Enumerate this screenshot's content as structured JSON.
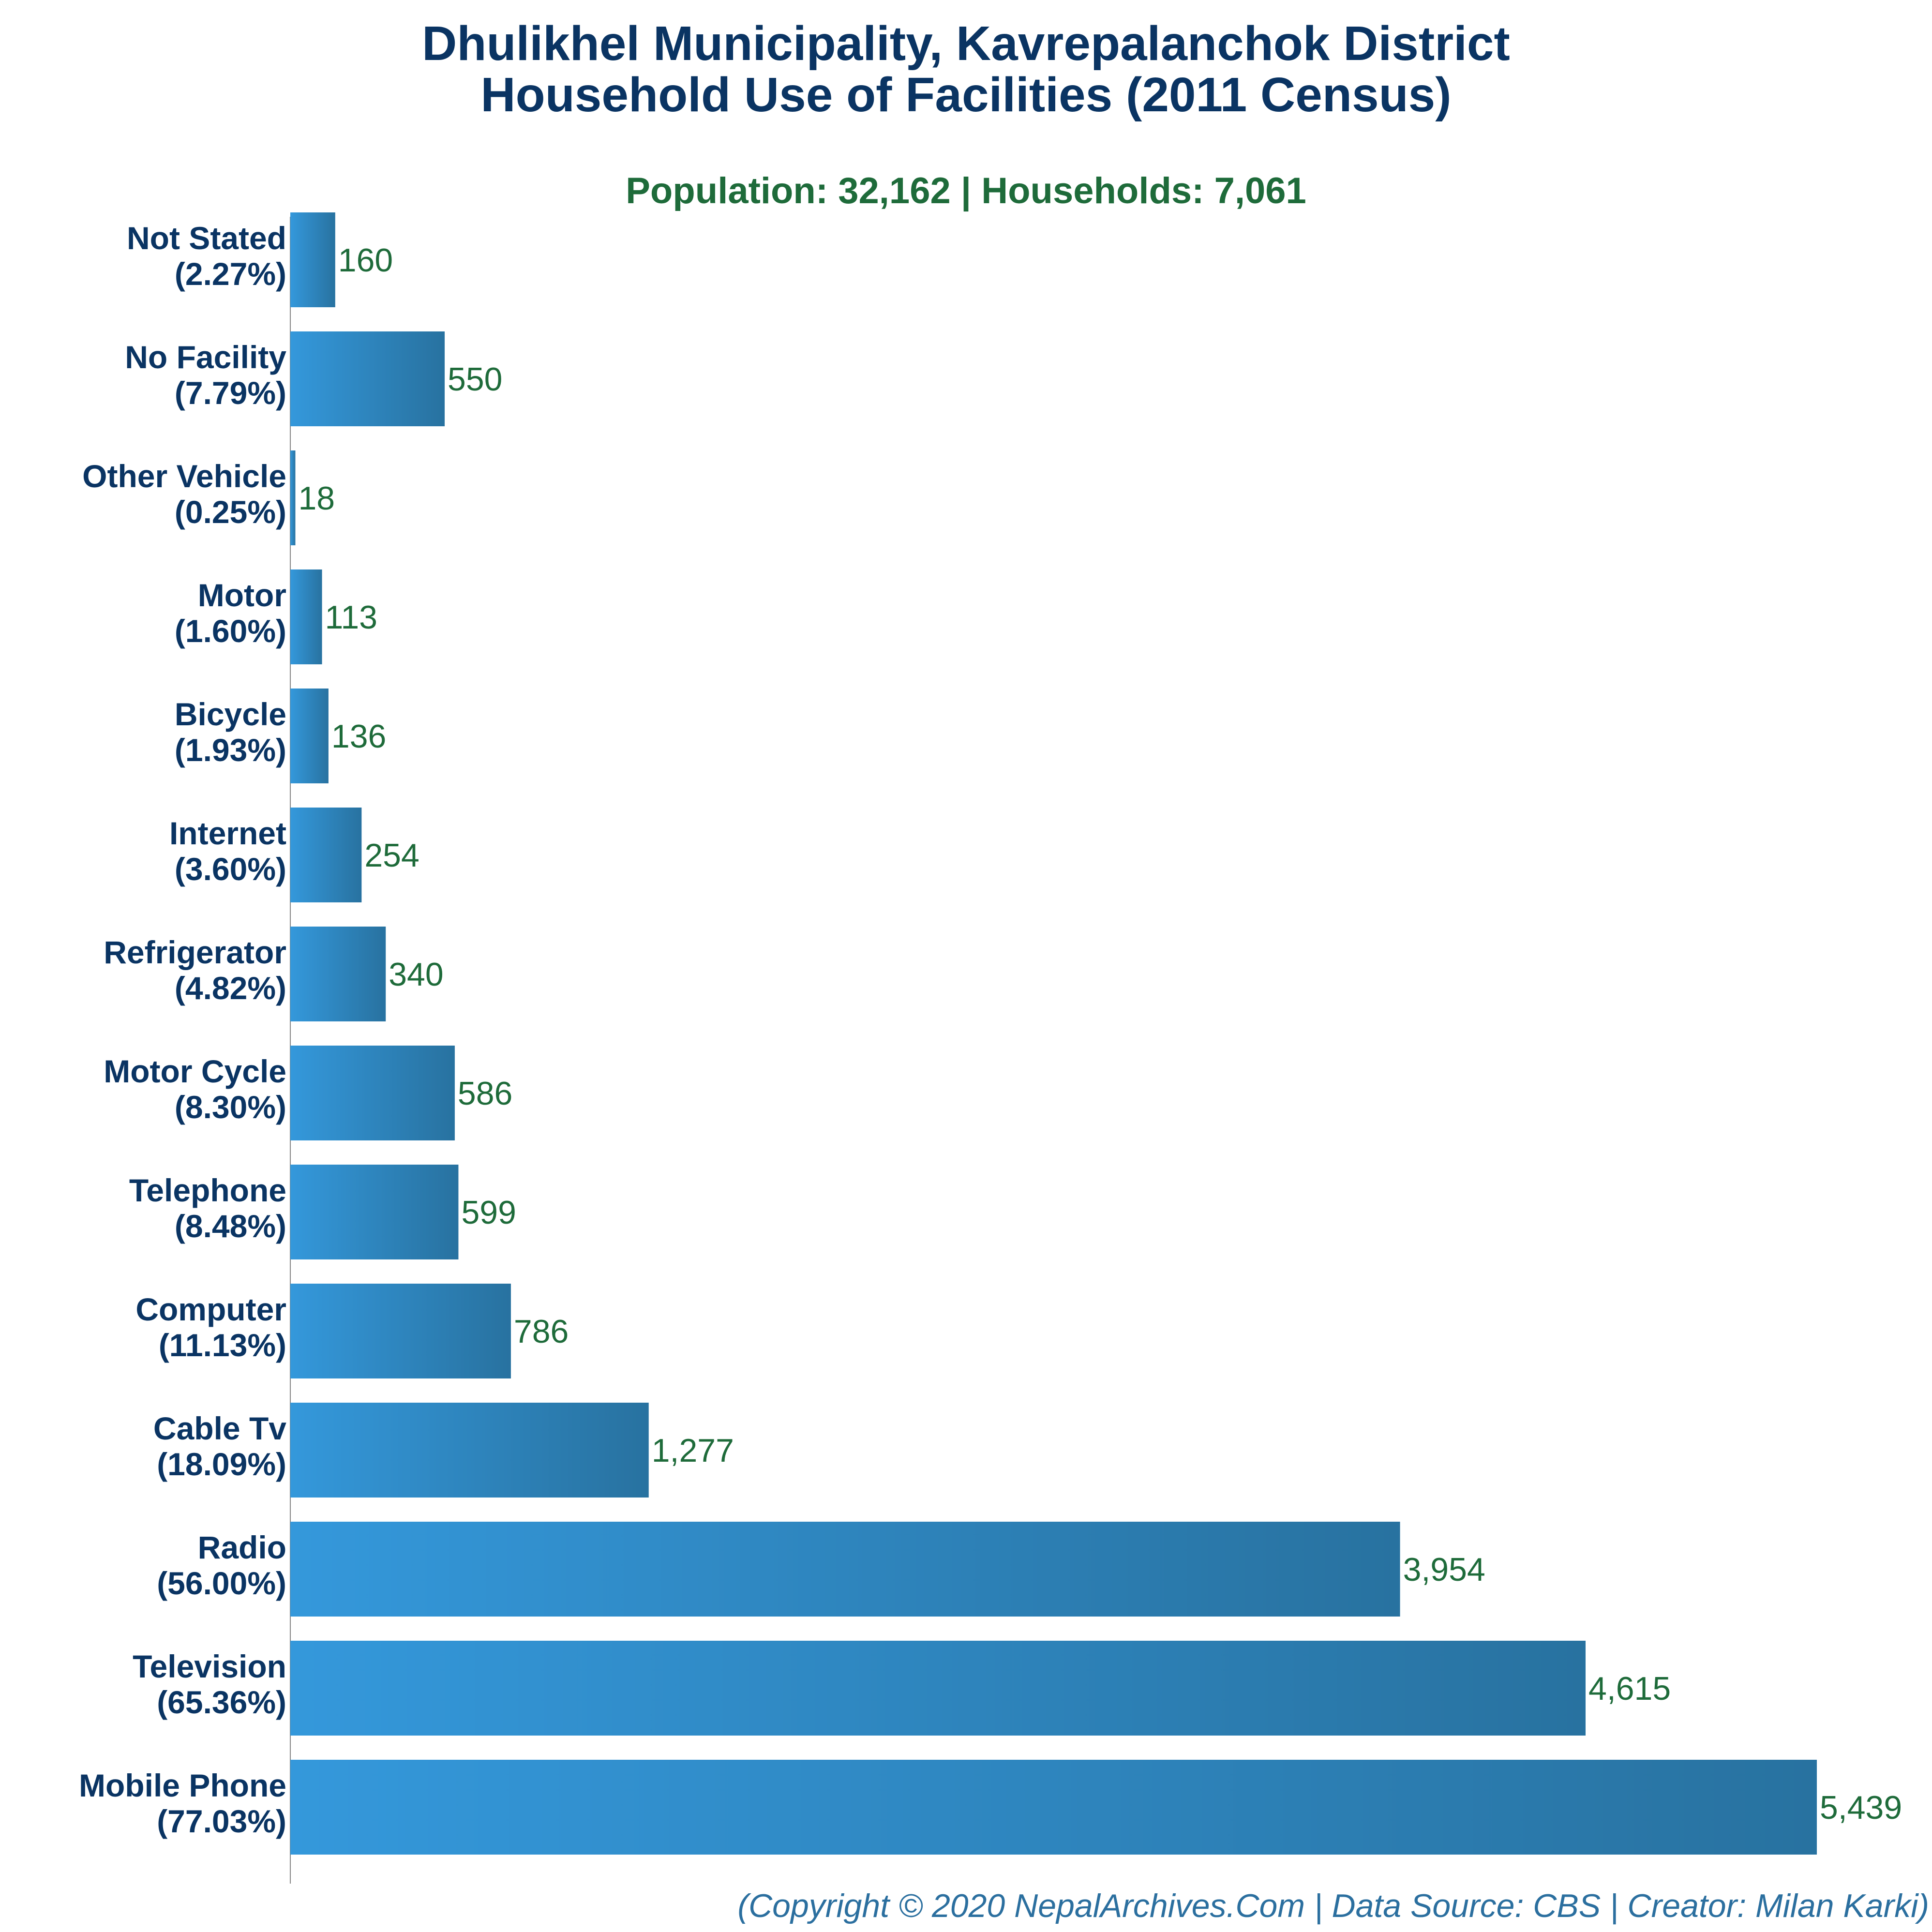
{
  "chart_data": {
    "type": "bar",
    "orientation": "horizontal",
    "title": "Dhulikhel Municipality, Kavrepalanchok District",
    "title_line2": "Household Use of Facilities (2011 Census)",
    "subtitle": "Population: 32,162 | Households: 7,061",
    "categories": [
      {
        "name": "Not Stated",
        "pct": "(2.27%)",
        "value": 160,
        "value_label": "160"
      },
      {
        "name": "No Facility",
        "pct": "(7.79%)",
        "value": 550,
        "value_label": "550"
      },
      {
        "name": "Other Vehicle",
        "pct": "(0.25%)",
        "value": 18,
        "value_label": "18"
      },
      {
        "name": "Motor",
        "pct": "(1.60%)",
        "value": 113,
        "value_label": "113"
      },
      {
        "name": "Bicycle",
        "pct": "(1.93%)",
        "value": 136,
        "value_label": "136"
      },
      {
        "name": "Internet",
        "pct": "(3.60%)",
        "value": 254,
        "value_label": "254"
      },
      {
        "name": "Refrigerator",
        "pct": "(4.82%)",
        "value": 340,
        "value_label": "340"
      },
      {
        "name": "Motor Cycle",
        "pct": "(8.30%)",
        "value": 586,
        "value_label": "586"
      },
      {
        "name": "Telephone",
        "pct": "(8.48%)",
        "value": 599,
        "value_label": "599"
      },
      {
        "name": "Computer",
        "pct": "(11.13%)",
        "value": 786,
        "value_label": "786"
      },
      {
        "name": "Cable Tv",
        "pct": "(18.09%)",
        "value": 1277,
        "value_label": "1,277"
      },
      {
        "name": "Radio",
        "pct": "(56.00%)",
        "value": 3954,
        "value_label": "3,954"
      },
      {
        "name": "Television",
        "pct": "(65.36%)",
        "value": 4615,
        "value_label": "4,615"
      },
      {
        "name": "Mobile Phone",
        "pct": "(77.03%)",
        "value": 5439,
        "value_label": "5,439"
      }
    ],
    "xlim": [
      0,
      5439
    ],
    "grid": false,
    "legend": "none",
    "colors": {
      "bar_start": "#3498db",
      "bar_end": "#2872a0",
      "title": "#0a3463",
      "subtitle": "#1e6b3a",
      "value_label": "#1e6b3a",
      "footer": "#2b6f9f",
      "axis": "#888888"
    }
  },
  "footer": "(Copyright © 2020 NepalArchives.Com | Data Source: CBS | Creator: Milan Karki)"
}
